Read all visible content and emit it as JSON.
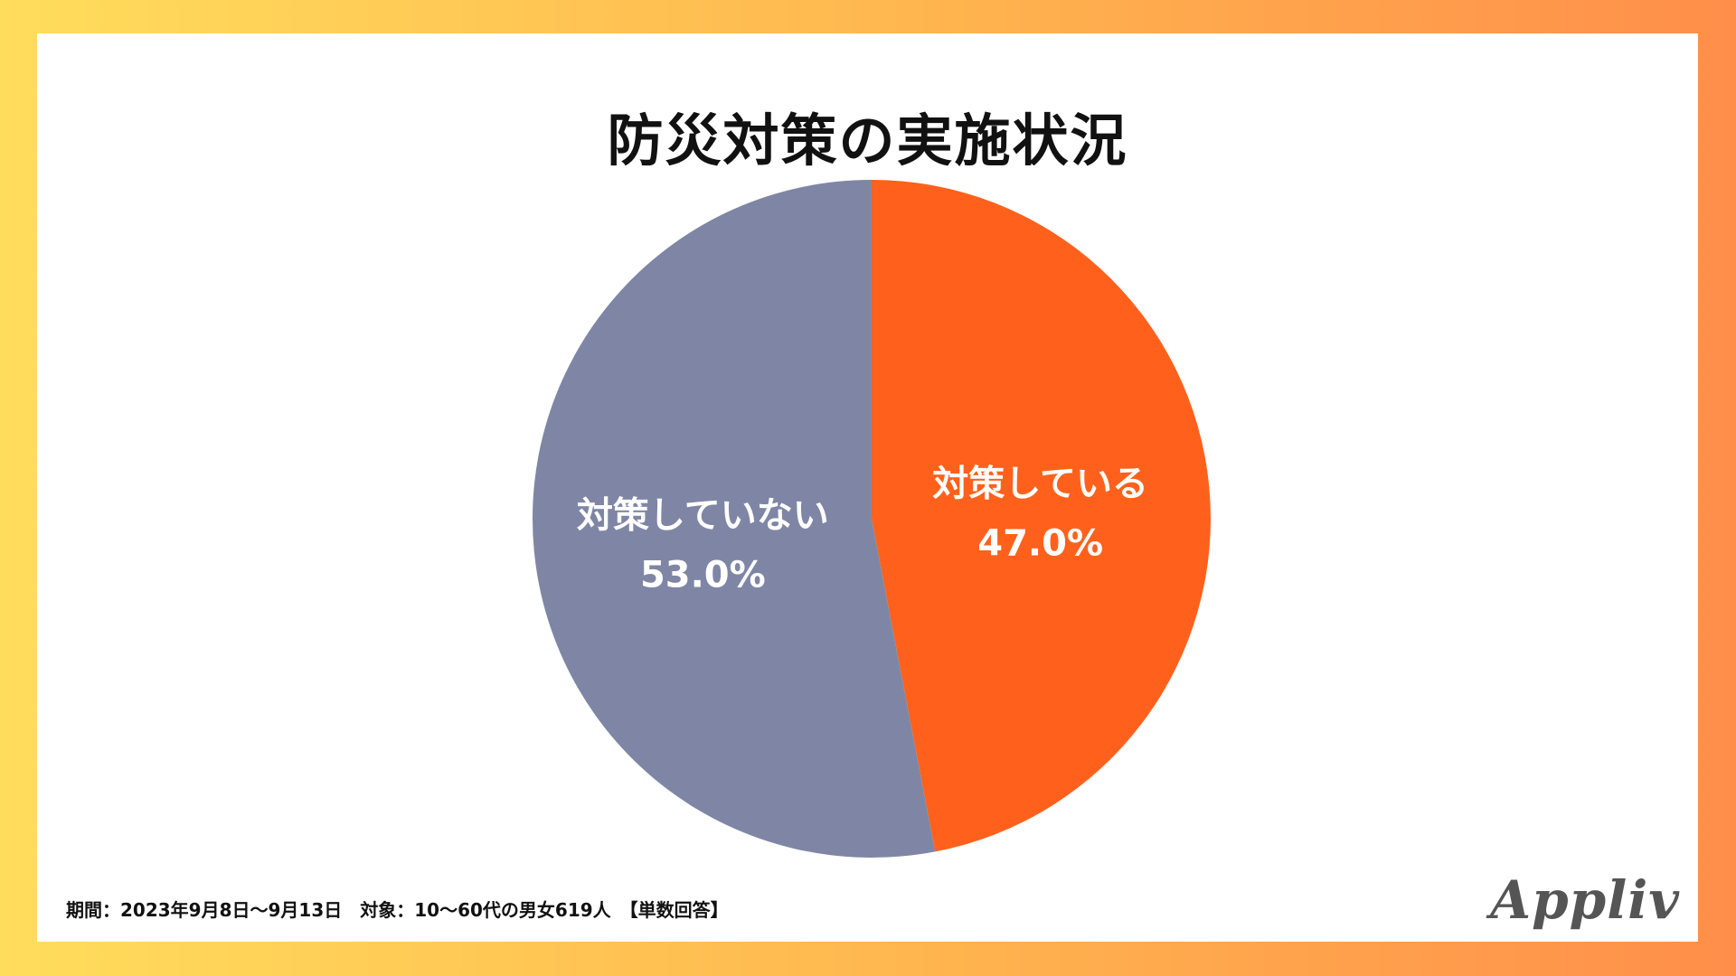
{
  "title": "防災対策の実施状況",
  "chart_data": {
    "type": "pie",
    "title": "防災対策の実施状況",
    "slices": [
      {
        "label": "対策している",
        "value": 47.0,
        "value_label": "47.0%",
        "color": "#ff611c"
      },
      {
        "label": "対策していない",
        "value": 53.0,
        "value_label": "53.0%",
        "color": "#7f86a5"
      }
    ],
    "start": "12 o'clock",
    "direction": "clockwise"
  },
  "footer": {
    "note": "期間：2023年9月8日〜9月13日　対象：10〜60代の男女619人　【単数回答】"
  },
  "logo": {
    "text": "Appliv"
  }
}
